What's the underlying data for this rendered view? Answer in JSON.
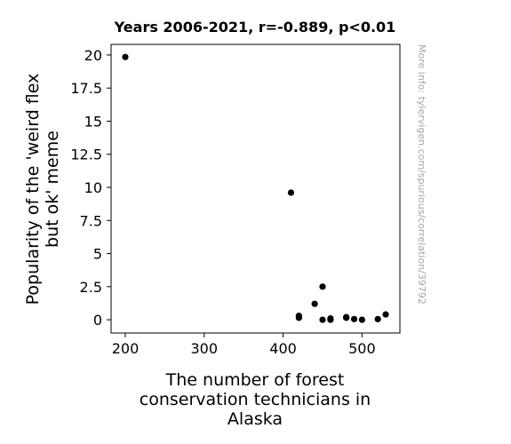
{
  "chart_data": {
    "type": "scatter",
    "title": "Years 2006-2021, r=-0.889, p<0.01",
    "xlabel": [
      "The number of forest",
      "conservation technicians in",
      "Alaska"
    ],
    "ylabel": [
      "Popularity of the 'weird flex",
      "but ok' meme"
    ],
    "xlim": [
      182,
      548
    ],
    "ylim": [
      -1.0,
      20.8
    ],
    "x_ticks": [
      200,
      300,
      400,
      500
    ],
    "x_tick_labels": [
      "200",
      "300",
      "400",
      "500"
    ],
    "y_ticks": [
      0,
      2.5,
      5,
      7.5,
      10,
      12.5,
      15,
      17.5,
      20
    ],
    "y_tick_labels": [
      "0",
      "2.5",
      "5",
      "7.5",
      "10",
      "12.5",
      "15",
      "17.5",
      "20"
    ],
    "grid": false,
    "marker_color": "#000000",
    "points": [
      {
        "x": 200,
        "y": 19.85
      },
      {
        "x": 410,
        "y": 9.6
      },
      {
        "x": 420,
        "y": 0.3
      },
      {
        "x": 420,
        "y": 0.15
      },
      {
        "x": 440,
        "y": 1.2
      },
      {
        "x": 450,
        "y": 2.5
      },
      {
        "x": 450,
        "y": 0.0
      },
      {
        "x": 460,
        "y": 0.1
      },
      {
        "x": 460,
        "y": 0.0
      },
      {
        "x": 480,
        "y": 0.2
      },
      {
        "x": 480,
        "y": 0.15
      },
      {
        "x": 490,
        "y": 0.05
      },
      {
        "x": 500,
        "y": 0.0
      },
      {
        "x": 520,
        "y": 0.05
      },
      {
        "x": 530,
        "y": 0.4
      }
    ]
  },
  "side_note": "More info: tylervigen.com/spurious/correlation/39792"
}
